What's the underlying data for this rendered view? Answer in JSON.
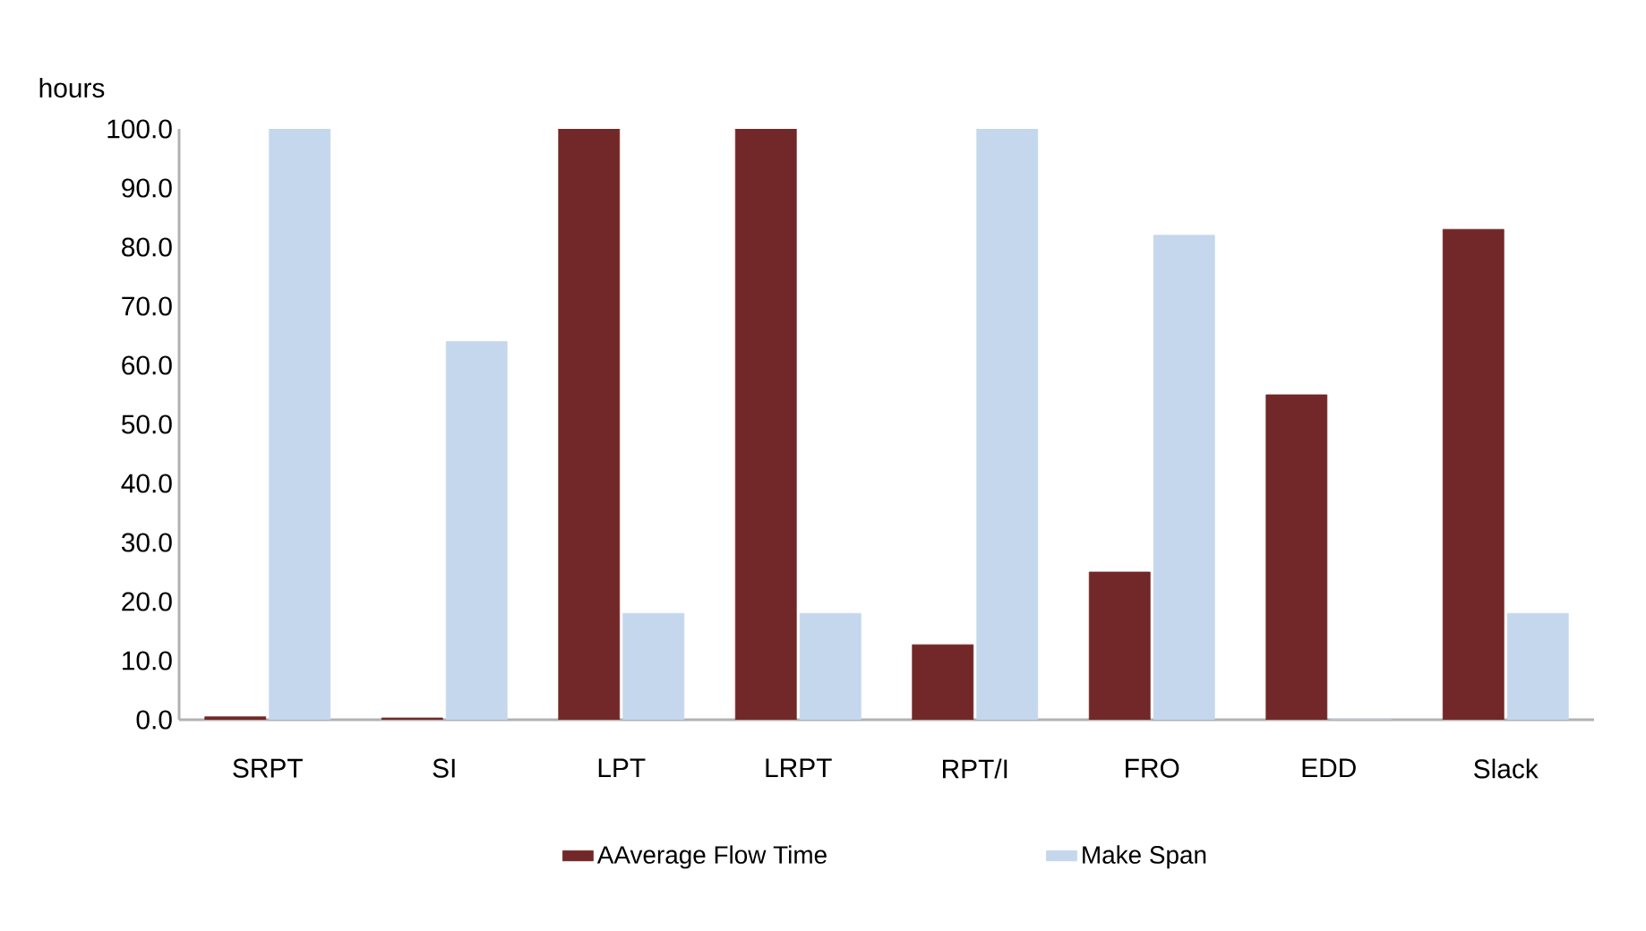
{
  "chart_data": {
    "type": "bar",
    "ylabel": "hours",
    "categories": [
      "SRPT",
      "SI",
      "LPT",
      "LRPT",
      "RPT/I",
      "FRO",
      "EDD",
      "Slack"
    ],
    "series": [
      {
        "name": "AAverage Flow Time",
        "color": "#722828",
        "values": [
          0.5,
          0.3,
          100,
          100,
          12.7,
          25,
          55,
          83
        ]
      },
      {
        "name": "Make Span",
        "color": "#c5d7ec",
        "values": [
          100,
          64,
          18,
          18,
          100,
          82,
          0,
          18
        ]
      }
    ],
    "ylim": [
      0,
      100
    ],
    "yticks": [
      {
        "value": 0,
        "label": "0.0"
      },
      {
        "value": 10,
        "label": "10.0"
      },
      {
        "value": 20,
        "label": "20.0"
      },
      {
        "value": 30,
        "label": "30.0"
      },
      {
        "value": 40,
        "label": "40.0"
      },
      {
        "value": 50,
        "label": "50.0"
      },
      {
        "value": 60,
        "label": "60.0"
      },
      {
        "value": 70,
        "label": "70.0"
      },
      {
        "value": 80,
        "label": "80.0"
      },
      {
        "value": 90,
        "label": "90.0"
      },
      {
        "value": 100,
        "label": "100.0"
      }
    ],
    "legend": "bottom"
  }
}
